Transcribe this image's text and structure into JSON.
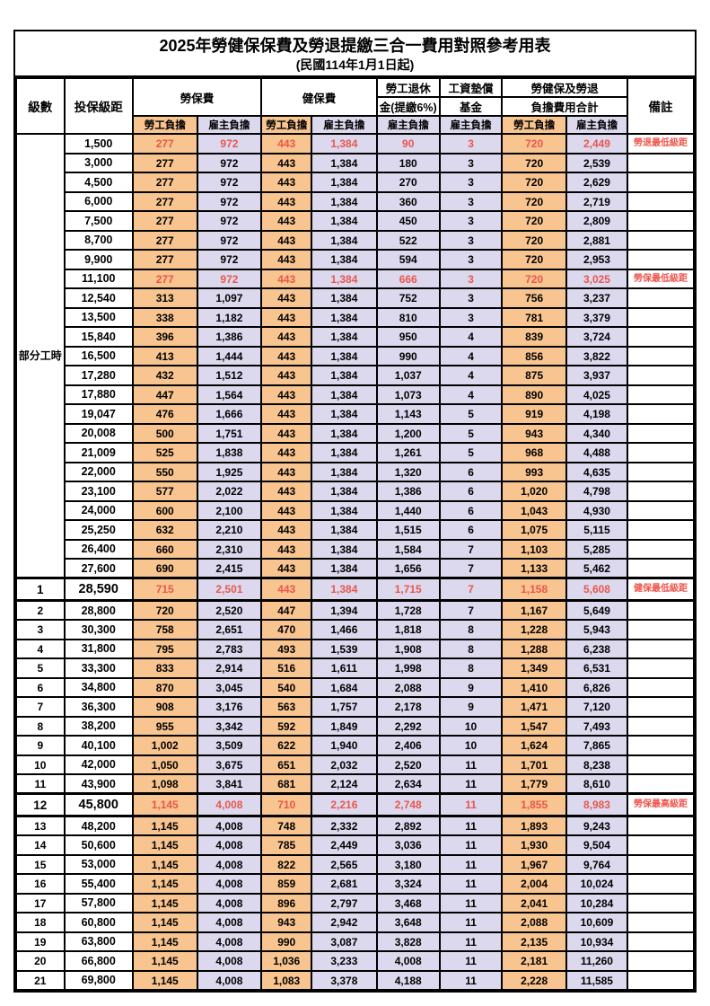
{
  "title": "2025年勞健保保費及勞退提繳三合一費用對照參考用表",
  "subtitle": "(民國114年1月1日起)",
  "colors": {
    "employee_bg": "#f8c48f",
    "employer_bg": "#dcd9ee",
    "highlight_red": "#e9564d",
    "remark_red": "#f0544c"
  },
  "table": {
    "header": {
      "level": "級數",
      "bracket": "投保級距",
      "labor_insurance": "勞保費",
      "health_insurance": "健保費",
      "pension_line1": "勞工退休",
      "pension_line2": "金(提繳6%)",
      "wage_fund_line1": "工資墊償",
      "wage_fund_line2": "基金",
      "total_line1": "勞健保及勞退",
      "total_line2": "負擔費用合計",
      "remark": "備註",
      "employee": "勞工負擔",
      "employer": "雇主負擔"
    },
    "part_time_label": "部分工時",
    "part_time_rowspan": 23,
    "columns": [
      "level",
      "bracket",
      "labor_employee",
      "labor_employer",
      "health_employee",
      "health_employer",
      "pension_employer",
      "wage_fund_employer",
      "total_employee",
      "total_employer",
      "remark"
    ],
    "rows": [
      [
        "",
        "1,500",
        "277",
        "972",
        "443",
        "1,384",
        "90",
        "3",
        "720",
        "2,449",
        "勞退最低級距",
        "h"
      ],
      [
        "",
        "3,000",
        "277",
        "972",
        "443",
        "1,384",
        "180",
        "3",
        "720",
        "2,539",
        "",
        ""
      ],
      [
        "",
        "4,500",
        "277",
        "972",
        "443",
        "1,384",
        "270",
        "3",
        "720",
        "2,629",
        "",
        ""
      ],
      [
        "",
        "6,000",
        "277",
        "972",
        "443",
        "1,384",
        "360",
        "3",
        "720",
        "2,719",
        "",
        ""
      ],
      [
        "",
        "7,500",
        "277",
        "972",
        "443",
        "1,384",
        "450",
        "3",
        "720",
        "2,809",
        "",
        ""
      ],
      [
        "",
        "8,700",
        "277",
        "972",
        "443",
        "1,384",
        "522",
        "3",
        "720",
        "2,881",
        "",
        ""
      ],
      [
        "",
        "9,900",
        "277",
        "972",
        "443",
        "1,384",
        "594",
        "3",
        "720",
        "2,953",
        "",
        ""
      ],
      [
        "",
        "11,100",
        "277",
        "972",
        "443",
        "1,384",
        "666",
        "3",
        "720",
        "3,025",
        "勞保最低級距",
        "h"
      ],
      [
        "",
        "12,540",
        "313",
        "1,097",
        "443",
        "1,384",
        "752",
        "3",
        "756",
        "3,237",
        "",
        ""
      ],
      [
        "",
        "13,500",
        "338",
        "1,182",
        "443",
        "1,384",
        "810",
        "3",
        "781",
        "3,379",
        "",
        ""
      ],
      [
        "",
        "15,840",
        "396",
        "1,386",
        "443",
        "1,384",
        "950",
        "4",
        "839",
        "3,724",
        "",
        ""
      ],
      [
        "",
        "16,500",
        "413",
        "1,444",
        "443",
        "1,384",
        "990",
        "4",
        "856",
        "3,822",
        "",
        ""
      ],
      [
        "",
        "17,280",
        "432",
        "1,512",
        "443",
        "1,384",
        "1,037",
        "4",
        "875",
        "3,937",
        "",
        ""
      ],
      [
        "",
        "17,880",
        "447",
        "1,564",
        "443",
        "1,384",
        "1,073",
        "4",
        "890",
        "4,025",
        "",
        ""
      ],
      [
        "",
        "19,047",
        "476",
        "1,666",
        "443",
        "1,384",
        "1,143",
        "5",
        "919",
        "4,198",
        "",
        ""
      ],
      [
        "",
        "20,008",
        "500",
        "1,751",
        "443",
        "1,384",
        "1,200",
        "5",
        "943",
        "4,340",
        "",
        ""
      ],
      [
        "",
        "21,009",
        "525",
        "1,838",
        "443",
        "1,384",
        "1,261",
        "5",
        "968",
        "4,488",
        "",
        ""
      ],
      [
        "",
        "22,000",
        "550",
        "1,925",
        "443",
        "1,384",
        "1,320",
        "6",
        "993",
        "4,635",
        "",
        ""
      ],
      [
        "",
        "23,100",
        "577",
        "2,022",
        "443",
        "1,384",
        "1,386",
        "6",
        "1,020",
        "4,798",
        "",
        ""
      ],
      [
        "",
        "24,000",
        "600",
        "2,100",
        "443",
        "1,384",
        "1,440",
        "6",
        "1,043",
        "4,930",
        "",
        ""
      ],
      [
        "",
        "25,250",
        "632",
        "2,210",
        "443",
        "1,384",
        "1,515",
        "6",
        "1,075",
        "5,115",
        "",
        ""
      ],
      [
        "",
        "26,400",
        "660",
        "2,310",
        "443",
        "1,384",
        "1,584",
        "7",
        "1,103",
        "5,285",
        "",
        ""
      ],
      [
        "",
        "27,600",
        "690",
        "2,415",
        "443",
        "1,384",
        "1,656",
        "7",
        "1,133",
        "5,462",
        "",
        ""
      ],
      [
        "1",
        "28,590",
        "715",
        "2,501",
        "443",
        "1,384",
        "1,715",
        "7",
        "1,158",
        "5,608",
        "健保最低級距",
        "he"
      ],
      [
        "2",
        "28,800",
        "720",
        "2,520",
        "447",
        "1,394",
        "1,728",
        "7",
        "1,167",
        "5,649",
        "",
        ""
      ],
      [
        "3",
        "30,300",
        "758",
        "2,651",
        "470",
        "1,466",
        "1,818",
        "8",
        "1,228",
        "5,943",
        "",
        ""
      ],
      [
        "4",
        "31,800",
        "795",
        "2,783",
        "493",
        "1,539",
        "1,908",
        "8",
        "1,288",
        "6,238",
        "",
        ""
      ],
      [
        "5",
        "33,300",
        "833",
        "2,914",
        "516",
        "1,611",
        "1,998",
        "8",
        "1,349",
        "6,531",
        "",
        ""
      ],
      [
        "6",
        "34,800",
        "870",
        "3,045",
        "540",
        "1,684",
        "2,088",
        "9",
        "1,410",
        "6,826",
        "",
        ""
      ],
      [
        "7",
        "36,300",
        "908",
        "3,176",
        "563",
        "1,757",
        "2,178",
        "9",
        "1,471",
        "7,120",
        "",
        ""
      ],
      [
        "8",
        "38,200",
        "955",
        "3,342",
        "592",
        "1,849",
        "2,292",
        "10",
        "1,547",
        "7,493",
        "",
        ""
      ],
      [
        "9",
        "40,100",
        "1,002",
        "3,509",
        "622",
        "1,940",
        "2,406",
        "10",
        "1,624",
        "7,865",
        "",
        ""
      ],
      [
        "10",
        "42,000",
        "1,050",
        "3,675",
        "651",
        "2,032",
        "2,520",
        "11",
        "1,701",
        "8,238",
        "",
        ""
      ],
      [
        "11",
        "43,900",
        "1,098",
        "3,841",
        "681",
        "2,124",
        "2,634",
        "11",
        "1,779",
        "8,610",
        "",
        ""
      ],
      [
        "12",
        "45,800",
        "1,145",
        "4,008",
        "710",
        "2,216",
        "2,748",
        "11",
        "1,855",
        "8,983",
        "勞保最高級距",
        "he"
      ],
      [
        "13",
        "48,200",
        "1,145",
        "4,008",
        "748",
        "2,332",
        "2,892",
        "11",
        "1,893",
        "9,243",
        "",
        ""
      ],
      [
        "14",
        "50,600",
        "1,145",
        "4,008",
        "785",
        "2,449",
        "3,036",
        "11",
        "1,930",
        "9,504",
        "",
        ""
      ],
      [
        "15",
        "53,000",
        "1,145",
        "4,008",
        "822",
        "2,565",
        "3,180",
        "11",
        "1,967",
        "9,764",
        "",
        ""
      ],
      [
        "16",
        "55,400",
        "1,145",
        "4,008",
        "859",
        "2,681",
        "3,324",
        "11",
        "2,004",
        "10,024",
        "",
        ""
      ],
      [
        "17",
        "57,800",
        "1,145",
        "4,008",
        "896",
        "2,797",
        "3,468",
        "11",
        "2,041",
        "10,284",
        "",
        ""
      ],
      [
        "18",
        "60,800",
        "1,145",
        "4,008",
        "943",
        "2,942",
        "3,648",
        "11",
        "2,088",
        "10,609",
        "",
        ""
      ],
      [
        "19",
        "63,800",
        "1,145",
        "4,008",
        "990",
        "3,087",
        "3,828",
        "11",
        "2,135",
        "10,934",
        "",
        ""
      ],
      [
        "20",
        "66,800",
        "1,145",
        "4,008",
        "1,036",
        "3,233",
        "4,008",
        "11",
        "2,181",
        "11,260",
        "",
        ""
      ],
      [
        "21",
        "69,800",
        "1,145",
        "4,008",
        "1,083",
        "3,378",
        "4,188",
        "11",
        "2,228",
        "11,585",
        "",
        ""
      ]
    ]
  }
}
